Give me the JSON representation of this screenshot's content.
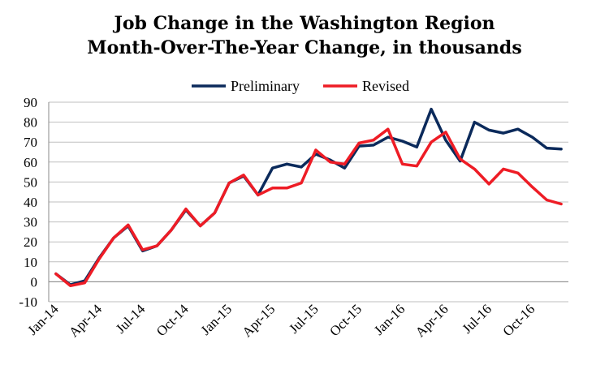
{
  "chart_data": {
    "type": "line",
    "title": "Job Change in the Washington Region",
    "subtitle": "Month-Over-The-Year Change, in thousands",
    "xlabel": "",
    "ylabel": "",
    "ylim": [
      -10,
      90
    ],
    "yticks": [
      -10,
      0,
      10,
      20,
      30,
      40,
      50,
      60,
      70,
      80,
      90
    ],
    "x": [
      "Jan-14",
      "Feb-14",
      "Mar-14",
      "Apr-14",
      "May-14",
      "Jun-14",
      "Jul-14",
      "Aug-14",
      "Sep-14",
      "Oct-14",
      "Nov-14",
      "Dec-14",
      "Jan-15",
      "Feb-15",
      "Mar-15",
      "Apr-15",
      "May-15",
      "Jun-15",
      "Jul-15",
      "Aug-15",
      "Sep-15",
      "Oct-15",
      "Nov-15",
      "Dec-15",
      "Jan-16",
      "Feb-16",
      "Mar-16",
      "Apr-16",
      "May-16",
      "Jun-16",
      "Jul-16",
      "Aug-16",
      "Sep-16",
      "Oct-16",
      "Nov-16",
      "Dec-16"
    ],
    "x_tick_labels": [
      "Jan-14",
      "Apr-14",
      "Jul-14",
      "Oct-14",
      "Jan-15",
      "Apr-15",
      "Jul-15",
      "Oct-15",
      "Jan-16",
      "Apr-16",
      "Jul-16",
      "Oct-16"
    ],
    "grid": true,
    "legend_position": "top",
    "series": [
      {
        "name": "Preliminary",
        "color": "#0b2a5b",
        "values": [
          4,
          -1.5,
          0.5,
          12,
          22,
          28,
          15.5,
          18,
          26,
          36,
          28,
          34.5,
          49.5,
          53,
          43.5,
          57,
          59,
          57.5,
          64,
          61,
          57,
          68,
          68.5,
          72.5,
          70.5,
          67.5,
          86.5,
          71,
          60.5,
          80,
          76,
          74.5,
          76.5,
          72.5,
          67,
          66.5
        ]
      },
      {
        "name": "Revised",
        "color": "#ee1c25",
        "values": [
          4,
          -2,
          -0.5,
          11.5,
          22,
          28.5,
          16,
          18,
          26,
          36.5,
          28,
          34.5,
          49.5,
          53.5,
          43.5,
          47,
          47,
          49.5,
          66,
          60,
          59,
          69.5,
          71,
          76.5,
          59,
          58,
          70,
          75,
          61.5,
          56.5,
          49,
          56.5,
          54.5,
          47.5,
          41,
          39
        ]
      }
    ]
  }
}
